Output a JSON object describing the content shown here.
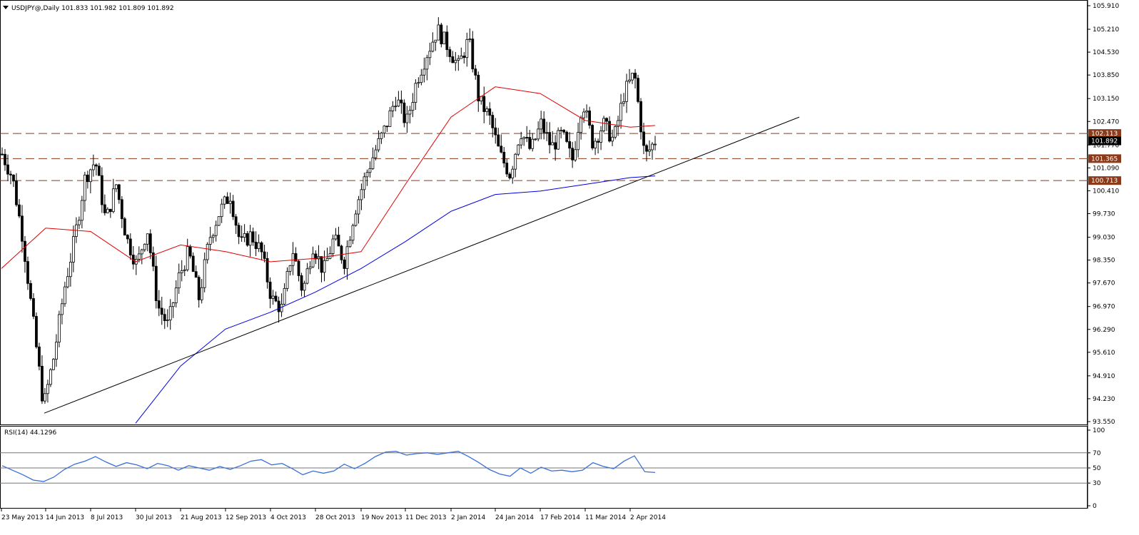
{
  "symbol_header": "USDJPY@,Daily  101.833 101.982 101.809 101.892",
  "rsi_header": "RSI(14) 44.1296",
  "colors": {
    "background": "#ffffff",
    "ma_short": "#e00000",
    "ma_long": "#0000e0",
    "trendline": "#000000",
    "level_line": "#8b3a1a",
    "rsi_line": "#3a6fd8",
    "price_tag_bg": "#8b3a1a",
    "current_tag_bg": "#000000"
  },
  "chart_data": [
    {
      "type": "candlestick",
      "title": "USDJPY@,Daily",
      "ohlc_last": {
        "open": 101.833,
        "high": 101.982,
        "low": 101.809,
        "close": 101.892
      },
      "ylim": [
        93.55,
        105.91
      ],
      "y_ticks": [
        "105.910",
        "105.210",
        "104.530",
        "103.850",
        "103.150",
        "102.470",
        "101.770",
        "101.090",
        "100.410",
        "99.730",
        "99.030",
        "98.350",
        "97.670",
        "96.970",
        "96.290",
        "95.610",
        "94.910",
        "94.230",
        "93.550"
      ],
      "x_ticks": [
        "23 May 2013",
        "14 Jun 2013",
        "8 Jul 2013",
        "30 Jul 2013",
        "21 Aug 2013",
        "12 Sep 2013",
        "4 Oct 2013",
        "28 Oct 2013",
        "19 Nov 2013",
        "11 Dec 2013",
        "2 Jan 2014",
        "24 Jan 2014",
        "17 Feb 2014",
        "11 Mar 2014",
        "2 Apr 2014"
      ],
      "horizontal_levels": [
        "102.113",
        "101.365",
        "100.713"
      ],
      "current_price": "101.892",
      "trendline": [
        {
          "date": "14 Jun 2013",
          "price": 93.8
        },
        {
          "date": "~2 May 2014",
          "price": 102.6
        }
      ],
      "price_path": [
        101.5,
        100.8,
        99.0,
        96.5,
        94.0,
        95.5,
        97.5,
        99.0,
        100.8,
        101.3,
        99.5,
        100.6,
        99.0,
        98.2,
        99.3,
        97.0,
        96.4,
        97.8,
        98.6,
        97.2,
        99.0,
        99.8,
        100.3,
        98.8,
        99.1,
        98.6,
        97.2,
        96.9,
        98.7,
        97.4,
        98.8,
        98.0,
        99.0,
        98.3,
        99.8,
        100.8,
        101.6,
        102.3,
        103.2,
        102.4,
        103.7,
        104.5,
        105.2,
        104.7,
        104.1,
        104.9,
        103.1,
        102.6,
        101.5,
        100.9,
        102.2,
        101.6,
        102.4,
        101.7,
        102.1,
        101.3,
        103.1,
        101.8,
        102.4,
        101.9,
        103.3,
        103.9,
        101.4,
        101.9
      ],
      "ma_short": [
        {
          "date": "23 May 2013",
          "price": 98.1
        },
        {
          "date": "14 Jun 2013",
          "price": 99.3
        },
        {
          "date": "8 Jul 2013",
          "price": 99.2
        },
        {
          "date": "30 Jul 2013",
          "price": 98.3
        },
        {
          "date": "21 Aug 2013",
          "price": 98.8
        },
        {
          "date": "12 Sep 2013",
          "price": 98.6
        },
        {
          "date": "4 Oct 2013",
          "price": 98.3
        },
        {
          "date": "28 Oct 2013",
          "price": 98.4
        },
        {
          "date": "19 Nov 2013",
          "price": 98.6
        },
        {
          "date": "11 Dec 2013",
          "price": 100.6
        },
        {
          "date": "2 Jan 2014",
          "price": 102.6
        },
        {
          "date": "24 Jan 2014",
          "price": 103.5
        },
        {
          "date": "17 Feb 2014",
          "price": 103.3
        },
        {
          "date": "11 Mar 2014",
          "price": 102.5
        },
        {
          "date": "2 Apr 2014",
          "price": 102.3
        }
      ],
      "ma_long": [
        {
          "date": "30 Jul 2013",
          "price": 93.5
        },
        {
          "date": "21 Aug 2013",
          "price": 95.2
        },
        {
          "date": "12 Sep 2013",
          "price": 96.3
        },
        {
          "date": "4 Oct 2013",
          "price": 96.8
        },
        {
          "date": "28 Oct 2013",
          "price": 97.4
        },
        {
          "date": "19 Nov 2013",
          "price": 98.1
        },
        {
          "date": "11 Dec 2013",
          "price": 98.9
        },
        {
          "date": "2 Jan 2014",
          "price": 99.8
        },
        {
          "date": "24 Jan 2014",
          "price": 100.3
        },
        {
          "date": "17 Feb 2014",
          "price": 100.4
        },
        {
          "date": "11 Mar 2014",
          "price": 100.6
        },
        {
          "date": "2 Apr 2014",
          "price": 100.8
        }
      ]
    },
    {
      "type": "line",
      "title": "RSI(14) 44.1296",
      "ylim": [
        0,
        100
      ],
      "y_ticks": [
        "100",
        "70",
        "50",
        "30",
        "0"
      ],
      "levels": [
        70,
        50,
        30
      ],
      "values": [
        53,
        47,
        41,
        34,
        32,
        38,
        48,
        55,
        59,
        65,
        58,
        52,
        57,
        54,
        49,
        56,
        53,
        47,
        53,
        50,
        47,
        52,
        48,
        53,
        59,
        61,
        54,
        56,
        49,
        41,
        46,
        43,
        46,
        55,
        49,
        56,
        65,
        71,
        72,
        67,
        69,
        70,
        68,
        70,
        72,
        65,
        57,
        48,
        42,
        39,
        50,
        43,
        51,
        46,
        47,
        45,
        47,
        57,
        52,
        49,
        59,
        66,
        45,
        44
      ]
    }
  ]
}
